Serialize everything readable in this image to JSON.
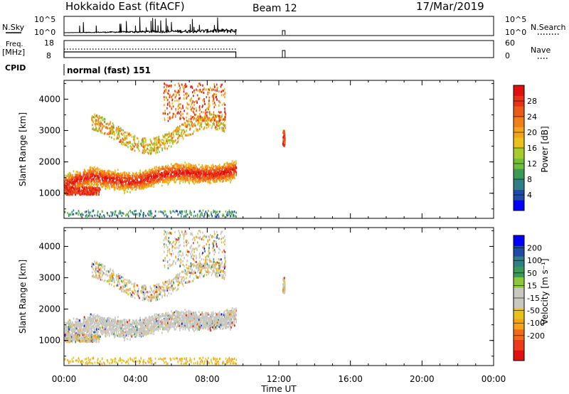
{
  "header": {
    "station": "Hokkaido East (fitACF)",
    "beam": "Beam 12",
    "date": "17/Mar/2019"
  },
  "top_panels": {
    "nsky_label": "N.Sky",
    "nsky_scale_top": "10^5",
    "nsky_scale_bottom": "10^0",
    "nsearch_label": "N.Search",
    "freq_label": "Freq.",
    "freq_unit": "[MHz]",
    "freq_scale_top": "18",
    "freq_scale_bottom": "8",
    "nave_label": "Nave",
    "nave_scale_top": "60",
    "nave_scale_bottom": "0",
    "cpid_label": "CPID",
    "cpid_value": "normal (fast) 151"
  },
  "colors": {
    "power": [
      "#0000ff",
      "#1f4aa8",
      "#2f7f86",
      "#3d9a56",
      "#6fbf3a",
      "#a8cc2b",
      "#e8c21a",
      "#f4a41a",
      "#f07f1a",
      "#ec5a1a",
      "#e8301a",
      "#e01010"
    ],
    "velocity": [
      "#e01010",
      "#ec3a1a",
      "#f06a1a",
      "#f4a41a",
      "#e8c21a",
      "#c8c8c0",
      "#c8c8c0",
      "#8cc83a",
      "#3d9a56",
      "#2f7f86",
      "#1f4aa8",
      "#0000ff"
    ]
  },
  "chart_data": [
    {
      "type": "heatmap",
      "panel": "power",
      "ylabel": "Slant Range [km]",
      "yticks": [
        "1000",
        "2000",
        "3000",
        "4000"
      ],
      "ylim": [
        200,
        4600
      ],
      "xlim_hours": [
        0,
        24
      ],
      "colorbar_label": "Power [dB]",
      "colorbar_ticks": [
        "4",
        "8",
        "12",
        "16",
        "20",
        "24",
        "28"
      ],
      "colorbar_range": [
        0,
        32
      ]
    },
    {
      "type": "heatmap",
      "panel": "velocity",
      "ylabel": "Slant Range [km]",
      "yticks": [
        "1000",
        "2000",
        "3000",
        "4000"
      ],
      "ylim": [
        200,
        4600
      ],
      "xlim_hours": [
        0,
        24
      ],
      "colorbar_label": "Velocity [m s⁻¹]",
      "colorbar_ticks": [
        "-200",
        "-100",
        "-50",
        "-15",
        "15",
        "50",
        "100",
        "200"
      ]
    }
  ],
  "xaxis": {
    "ticks": [
      "00:00",
      "04:00",
      "08:00",
      "12:00",
      "16:00",
      "20:00",
      "00:00"
    ],
    "label": "Time UT"
  }
}
